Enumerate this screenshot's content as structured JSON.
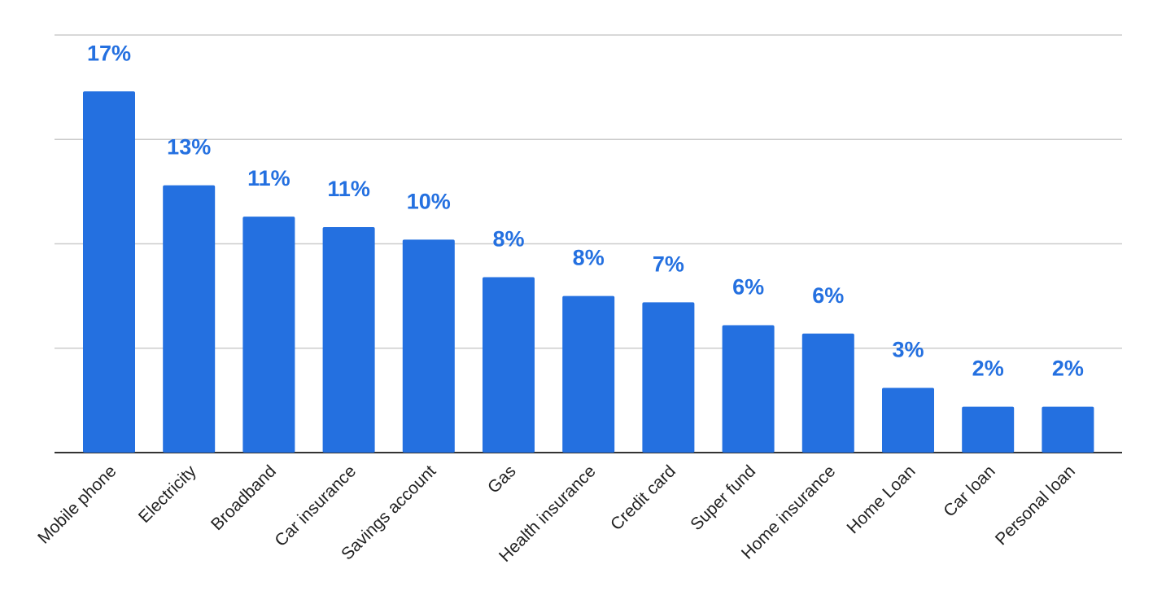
{
  "chart_data": {
    "type": "bar",
    "categories": [
      "Mobile phone",
      "Electricity",
      "Broadband",
      "Car insurance",
      "Savings account",
      "Gas",
      "Health insurance",
      "Credit card",
      "Super fund",
      "Home insurance",
      "Home Loan",
      "Car loan",
      "Personal loan"
    ],
    "values": [
      17.3,
      12.8,
      11.3,
      10.8,
      10.2,
      8.4,
      7.5,
      7.2,
      6.1,
      5.7,
      3.1,
      2.2,
      2.2
    ],
    "data_labels": [
      "17%",
      "13%",
      "11%",
      "11%",
      "10%",
      "8%",
      "8%",
      "7%",
      "6%",
      "6%",
      "3%",
      "2%",
      "2%"
    ],
    "ylim": [
      0,
      20
    ],
    "gridlines": [
      0,
      5,
      10,
      15,
      20
    ],
    "grid": true,
    "legend": "none",
    "bar_color": "#2470e0",
    "label_color": "#2470e0"
  }
}
